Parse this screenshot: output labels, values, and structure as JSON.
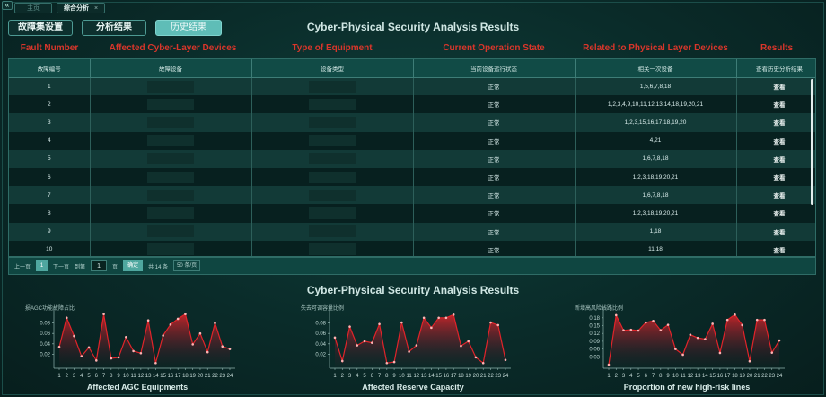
{
  "window": {
    "collapse_icon": "«",
    "tabs": [
      {
        "label": "主页",
        "active": false
      },
      {
        "label": "综合分析",
        "active": true,
        "close": "×"
      }
    ]
  },
  "nav": {
    "buttons": [
      {
        "label": "故障集设置",
        "active": false
      },
      {
        "label": "分析结果",
        "active": false
      },
      {
        "label": "历史结果",
        "active": true
      }
    ]
  },
  "header": {
    "title": "Cyber-Physical Security Analysis Results",
    "english_columns": [
      "Fault Number",
      "Affected Cyber-Layer Devices",
      "Type of Equipment",
      "Current Operation State",
      "Related to Physical Layer Devices",
      "Results"
    ]
  },
  "table": {
    "columns": [
      "故障编号",
      "故障设备",
      "设备类型",
      "当前设备运行状态",
      "相关一次设备",
      "查看历史分析结果"
    ],
    "rows": [
      {
        "id": "1",
        "device": "",
        "type": "",
        "state": "正常",
        "related": "1,5,6,7,8,18",
        "action": "查看"
      },
      {
        "id": "2",
        "device": "",
        "type": "",
        "state": "正常",
        "related": "1,2,3,4,9,10,11,12,13,14,18,19,20,21",
        "action": "查看"
      },
      {
        "id": "3",
        "device": "",
        "type": "",
        "state": "正常",
        "related": "1,2,3,15,16,17,18,19,20",
        "action": "查看"
      },
      {
        "id": "4",
        "device": "",
        "type": "",
        "state": "正常",
        "related": "4,21",
        "action": "查看"
      },
      {
        "id": "5",
        "device": "",
        "type": "",
        "state": "正常",
        "related": "1,6,7,8,18",
        "action": "查看"
      },
      {
        "id": "6",
        "device": "",
        "type": "",
        "state": "正常",
        "related": "1,2,3,18,19,20,21",
        "action": "查看"
      },
      {
        "id": "7",
        "device": "",
        "type": "",
        "state": "正常",
        "related": "1,6,7,8,18",
        "action": "查看"
      },
      {
        "id": "8",
        "device": "",
        "type": "",
        "state": "正常",
        "related": "1,2,3,18,19,20,21",
        "action": "查看"
      },
      {
        "id": "9",
        "device": "",
        "type": "",
        "state": "正常",
        "related": "1,18",
        "action": "查看"
      },
      {
        "id": "10",
        "device": "",
        "type": "",
        "state": "正常",
        "related": "11,18",
        "action": "查看"
      }
    ]
  },
  "pagination": {
    "prev": "上一页",
    "current": "1",
    "next": "下一页",
    "goto_prefix": "到第",
    "goto_value": "1",
    "goto_suffix": "页",
    "confirm": "确定",
    "total": "共 14 条",
    "page_size": "50 条/页"
  },
  "charts_section": {
    "title": "Cyber-Physical Security Analysis Results"
  },
  "colors": {
    "accent_red": "#d9362b",
    "line_red": "#e0242a",
    "active_button": "#5fbdb7",
    "header_bg": "#114b46"
  },
  "chart_data": [
    {
      "type": "area",
      "title": "Affected AGC Equipments",
      "xlabel": "Affected AGC Equipments",
      "ylabel": "损AGC功能故障占比",
      "x": [
        1,
        2,
        3,
        4,
        5,
        6,
        7,
        8,
        9,
        10,
        11,
        12,
        13,
        14,
        15,
        16,
        17,
        18,
        19,
        20,
        21,
        22,
        23,
        24
      ],
      "values": [
        0.034,
        0.09,
        0.055,
        0.016,
        0.033,
        0.008,
        0.097,
        0.012,
        0.014,
        0.053,
        0.026,
        0.022,
        0.085,
        0.003,
        0.056,
        0.077,
        0.088,
        0.097,
        0.039,
        0.06,
        0.024,
        0.08,
        0.035,
        0.03
      ],
      "yticks": [
        0.02,
        0.04,
        0.06,
        0.08
      ],
      "ylim": [
        0,
        0.1
      ],
      "grid": false
    },
    {
      "type": "area",
      "title": "Affected Reserve Capacity",
      "xlabel": "Affected Reserve Capacity",
      "ylabel": "失去可调容量比例",
      "x": [
        1,
        2,
        3,
        4,
        5,
        6,
        7,
        8,
        9,
        10,
        11,
        12,
        13,
        14,
        15,
        16,
        17,
        18,
        19,
        20,
        21,
        22,
        23,
        24
      ],
      "values": [
        0.052,
        0.007,
        0.073,
        0.037,
        0.045,
        0.042,
        0.078,
        0.003,
        0.005,
        0.081,
        0.025,
        0.037,
        0.09,
        0.071,
        0.09,
        0.09,
        0.096,
        0.036,
        0.045,
        0.014,
        0.003,
        0.081,
        0.076,
        0.009
      ],
      "yticks": [
        0.02,
        0.04,
        0.06,
        0.08
      ],
      "ylim": [
        0,
        0.1
      ],
      "grid": false
    },
    {
      "type": "area",
      "title": "Proportion of new high-risk lines",
      "xlabel": "Proportion of new high-risk lines",
      "ylabel": "新增高风险线路比例",
      "x": [
        1,
        2,
        3,
        4,
        5,
        6,
        7,
        8,
        9,
        10,
        11,
        12,
        13,
        14,
        15,
        16,
        17,
        18,
        19,
        20,
        21,
        22,
        23,
        24
      ],
      "values": [
        0.0,
        0.19,
        0.132,
        0.134,
        0.131,
        0.162,
        0.168,
        0.132,
        0.153,
        0.06,
        0.038,
        0.115,
        0.103,
        0.098,
        0.157,
        0.045,
        0.172,
        0.192,
        0.152,
        0.013,
        0.172,
        0.172,
        0.046,
        0.093
      ],
      "yticks": [
        0.03,
        0.06,
        0.09,
        0.12,
        0.15,
        0.18
      ],
      "ylim": [
        0,
        0.2
      ],
      "grid": false
    }
  ]
}
